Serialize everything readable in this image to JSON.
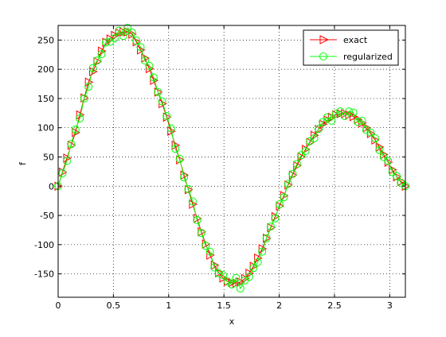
{
  "chart_data": {
    "type": "line",
    "xlabel": "x",
    "ylabel": "f",
    "xlim": [
      0,
      3.14159
    ],
    "ylim": [
      -190,
      275
    ],
    "grid": true,
    "legend_position": "top-right",
    "x_ticks": [
      0,
      0.5,
      1,
      1.5,
      2,
      2.5,
      3
    ],
    "x_tick_labels": [
      "0",
      "0.5",
      "1",
      "1.5",
      "2",
      "2.5",
      "3"
    ],
    "y_ticks": [
      -150,
      -100,
      -50,
      0,
      50,
      100,
      150,
      200,
      250
    ],
    "y_tick_labels": [
      "-150",
      "-100",
      "-50",
      "0",
      "50",
      "100",
      "150",
      "200",
      "250"
    ],
    "series": [
      {
        "name": "exact",
        "color": "#ff0000",
        "marker": "triangle-right",
        "x": [
          0,
          0.039,
          0.079,
          0.118,
          0.157,
          0.196,
          0.236,
          0.275,
          0.314,
          0.353,
          0.393,
          0.432,
          0.471,
          0.511,
          0.55,
          0.589,
          0.628,
          0.668,
          0.707,
          0.746,
          0.785,
          0.825,
          0.864,
          0.903,
          0.942,
          0.982,
          1.021,
          1.06,
          1.1,
          1.139,
          1.178,
          1.217,
          1.257,
          1.296,
          1.335,
          1.374,
          1.414,
          1.453,
          1.492,
          1.532,
          1.571,
          1.61,
          1.649,
          1.689,
          1.728,
          1.767,
          1.806,
          1.846,
          1.885,
          1.924,
          1.963,
          2.003,
          2.042,
          2.081,
          2.121,
          2.16,
          2.199,
          2.238,
          2.278,
          2.317,
          2.356,
          2.395,
          2.435,
          2.474,
          2.513,
          2.553,
          2.592,
          2.631,
          2.67,
          2.71,
          2.749,
          2.788,
          2.827,
          2.867,
          2.906,
          2.945,
          2.985,
          3.024,
          3.063,
          3.102,
          3.142
        ],
        "y": [
          0,
          24,
          48,
          70,
          92,
          122,
          151,
          178,
          196,
          213,
          231,
          246,
          252,
          258,
          262,
          264,
          264,
          260,
          247,
          233,
          219,
          201,
          181,
          161,
          141,
          118,
          94,
          70,
          45,
          19,
          -6,
          -31,
          -55,
          -78,
          -99,
          -118,
          -135,
          -148,
          -157,
          -163,
          -165,
          -166,
          -164,
          -158,
          -149,
          -137,
          -123,
          -107,
          -89,
          -71,
          -52,
          -34,
          -16,
          2,
          19,
          35,
          50,
          63,
          75,
          87,
          97,
          106,
          113,
          118,
          122,
          124,
          124,
          122,
          119,
          114,
          108,
          100,
          90,
          79,
          67,
          54,
          41,
          28,
          16,
          8,
          0
        ]
      },
      {
        "name": "regularized",
        "color": "#00ff00",
        "marker": "circle",
        "x": [
          0,
          0.039,
          0.079,
          0.118,
          0.157,
          0.196,
          0.236,
          0.275,
          0.314,
          0.353,
          0.393,
          0.432,
          0.471,
          0.511,
          0.55,
          0.589,
          0.628,
          0.668,
          0.707,
          0.746,
          0.785,
          0.825,
          0.864,
          0.903,
          0.942,
          0.982,
          1.021,
          1.06,
          1.1,
          1.139,
          1.178,
          1.217,
          1.257,
          1.296,
          1.335,
          1.374,
          1.414,
          1.453,
          1.492,
          1.532,
          1.571,
          1.61,
          1.649,
          1.689,
          1.728,
          1.767,
          1.806,
          1.846,
          1.885,
          1.924,
          1.963,
          2.003,
          2.042,
          2.081,
          2.121,
          2.16,
          2.199,
          2.238,
          2.278,
          2.317,
          2.356,
          2.395,
          2.435,
          2.474,
          2.513,
          2.553,
          2.592,
          2.631,
          2.67,
          2.71,
          2.749,
          2.788,
          2.827,
          2.867,
          2.906,
          2.945,
          2.985,
          3.024,
          3.063,
          3.102,
          3.142
        ],
        "y": [
          0,
          22,
          43,
          72,
          97,
          116,
          150,
          170,
          202,
          215,
          226,
          246,
          247,
          253,
          266,
          257,
          271,
          263,
          249,
          238,
          215,
          206,
          186,
          161,
          145,
          120,
          99,
          64,
          47,
          15,
          -5,
          -26,
          -58,
          -80,
          -102,
          -112,
          -139,
          -149,
          -152,
          -163,
          -168,
          -157,
          -175,
          -161,
          -155,
          -140,
          -130,
          -112,
          -89,
          -69,
          -55,
          -31,
          -19,
          4,
          21,
          38,
          53,
          60,
          77,
          82,
          98,
          110,
          118,
          112,
          124,
          128,
          120,
          128,
          126,
          110,
          112,
          96,
          92,
          82,
          62,
          50,
          43,
          24,
          17,
          6,
          0
        ]
      }
    ]
  }
}
